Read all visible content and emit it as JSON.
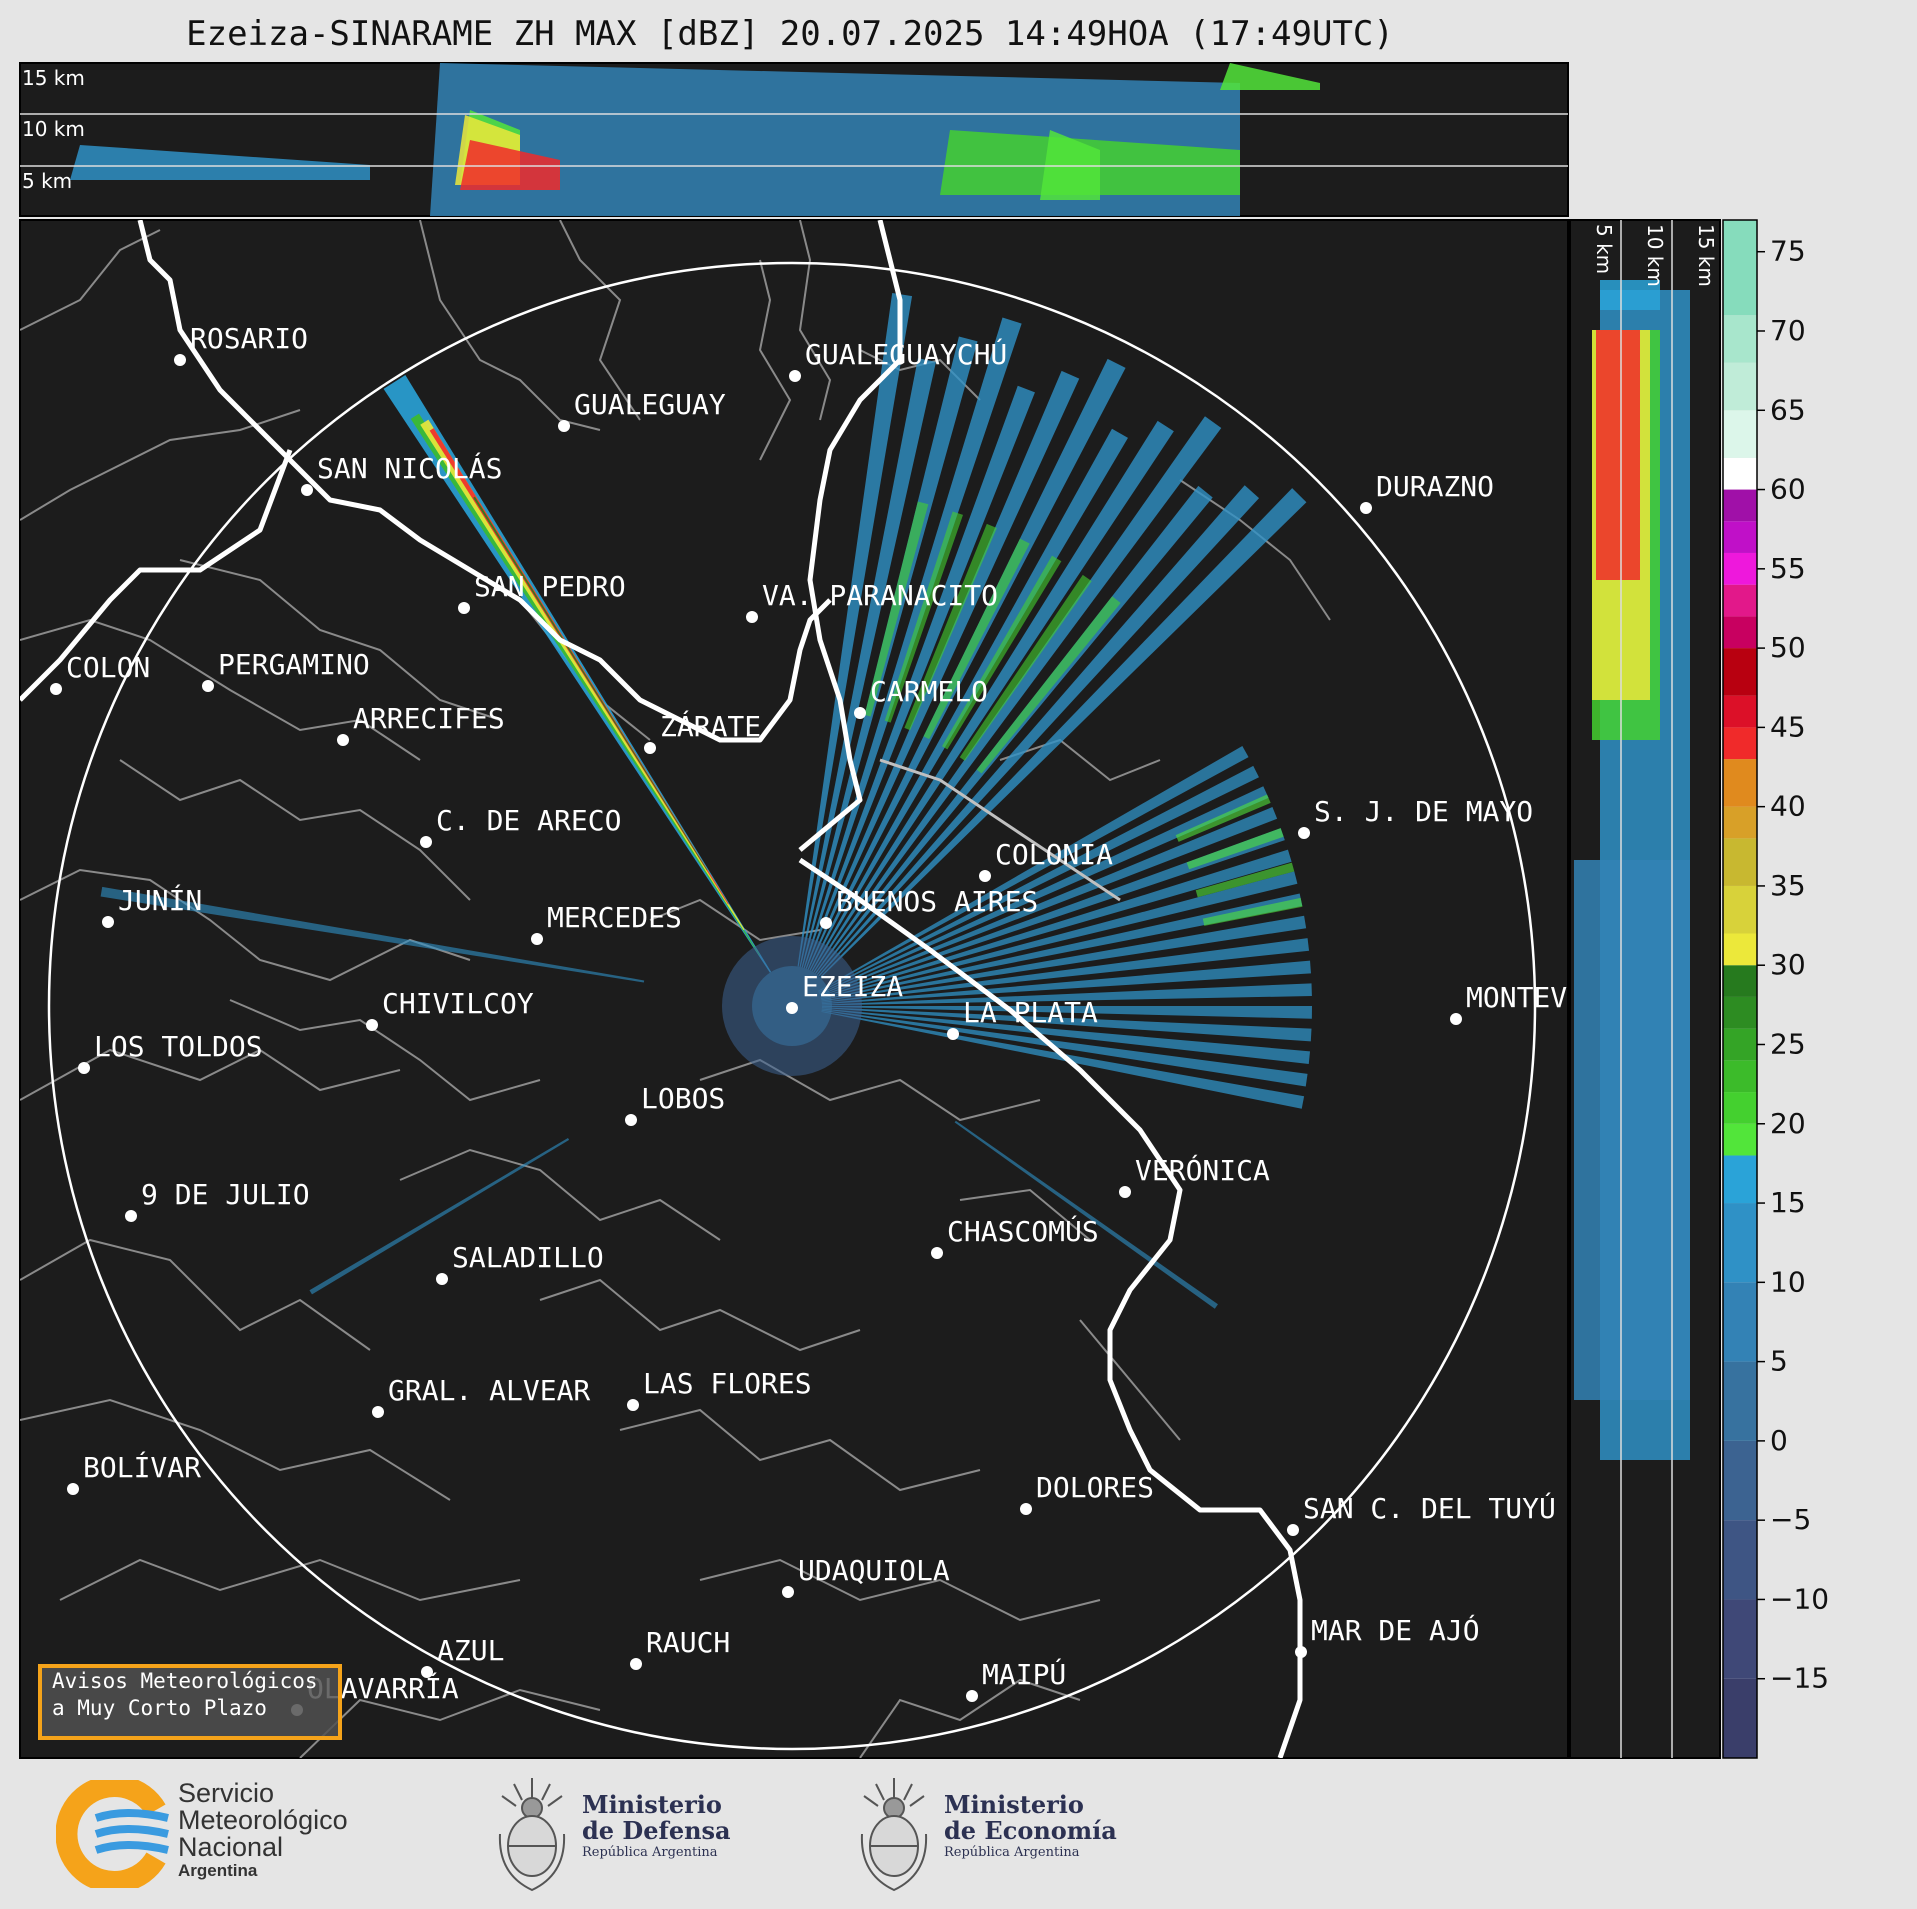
{
  "title": "Ezeiza-SINARAME ZH MAX [dBZ] 20.07.2025 14:49HOA (17:49UTC)",
  "top_panel": {
    "altitude_labels": [
      "15 km",
      "10 km",
      "5 km"
    ]
  },
  "side_panel": {
    "altitude_labels": [
      "5 km",
      "10 km",
      "15 km"
    ]
  },
  "colorbar": {
    "ticks": [
      "75",
      "70",
      "65",
      "60",
      "55",
      "50",
      "45",
      "40",
      "35",
      "30",
      "25",
      "20",
      "15",
      "10",
      "5",
      "0",
      "−5",
      "−10",
      "−15"
    ],
    "units": "dBZ",
    "range": [
      -20,
      77
    ]
  },
  "map": {
    "radar_site": "EZEIZA",
    "cities": [
      {
        "name": "ROSARIO"
      },
      {
        "name": "GUALEGUAYCHÚ"
      },
      {
        "name": "GUALEGUAY"
      },
      {
        "name": "SAN NICOLÁS"
      },
      {
        "name": "DURAZNO"
      },
      {
        "name": "SAN PEDRO"
      },
      {
        "name": "VA. PARANACITO"
      },
      {
        "name": "COLON"
      },
      {
        "name": "PERGAMINO"
      },
      {
        "name": "CARMELO"
      },
      {
        "name": "ARRECIFES"
      },
      {
        "name": "ZÁRATE"
      },
      {
        "name": "S. J. DE MAYO"
      },
      {
        "name": "C. DE ARECO"
      },
      {
        "name": "COLONIA"
      },
      {
        "name": "JUNÍN"
      },
      {
        "name": "BUENOS AIRES"
      },
      {
        "name": "MERCEDES"
      },
      {
        "name": "EZEIZA"
      },
      {
        "name": "MONTEVIDEO"
      },
      {
        "name": "CHIVILCOY"
      },
      {
        "name": "LA PLATA"
      },
      {
        "name": "LOS TOLDOS"
      },
      {
        "name": "LOBOS"
      },
      {
        "name": "VERÓNICA"
      },
      {
        "name": "9 DE JULIO"
      },
      {
        "name": "CHASCOMÚS"
      },
      {
        "name": "SALADILLO"
      },
      {
        "name": "GRAL. ALVEAR"
      },
      {
        "name": "LAS FLORES"
      },
      {
        "name": "BOLÍVAR"
      },
      {
        "name": "DOLORES"
      },
      {
        "name": "SAN C. DEL TUYÚ"
      },
      {
        "name": "UDAQUIOLA"
      },
      {
        "name": "MAR DE AJÓ"
      },
      {
        "name": "AZUL"
      },
      {
        "name": "RAUCH"
      },
      {
        "name": "OLAVARRÍA"
      },
      {
        "name": "MAIPÚ"
      }
    ]
  },
  "avisos": {
    "line1": "Avisos Meteorológicos",
    "line2": "a Muy Corto Plazo"
  },
  "logos": {
    "smn": {
      "line1": "Servicio",
      "line2": "Meteorológico",
      "line3": "Nacional",
      "line4": "Argentina"
    },
    "defensa": {
      "line1": "Ministerio",
      "line2": "de Defensa",
      "line3": "República Argentina"
    },
    "economia": {
      "line1": "Ministerio",
      "line2": "de Economía",
      "line3": "República Argentina"
    }
  },
  "colors": {
    "background": "#1c1c1c",
    "page": "#e5e5e5",
    "accent": "#f5a31a"
  }
}
